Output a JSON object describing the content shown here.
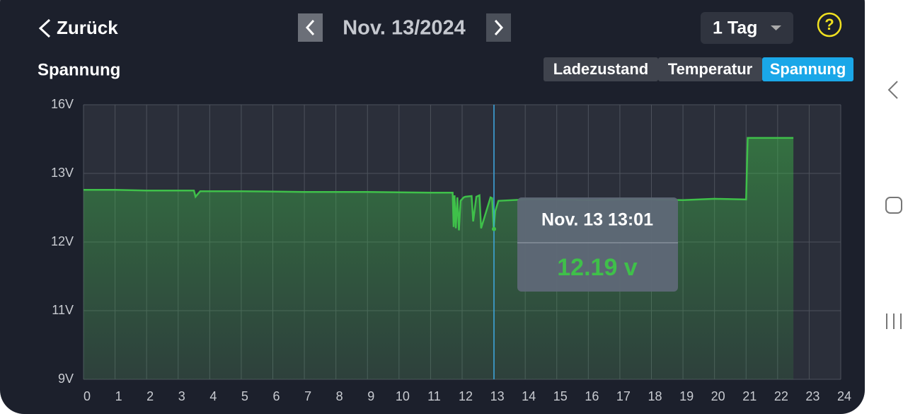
{
  "header": {
    "back": "Zurück",
    "date": "Nov. 13/2024",
    "range": "1 Tag",
    "help": "?"
  },
  "section_title": "Spannung",
  "tabs": {
    "items": [
      "Ladezustand",
      "Temperatur",
      "Spannung"
    ],
    "active": 2
  },
  "chart_data": {
    "type": "line",
    "color": "#3fc04a",
    "grid": true,
    "x": [
      0,
      1,
      2,
      3,
      3.5,
      3.55,
      3.7,
      5,
      7,
      9,
      11,
      11.7,
      11.73,
      11.76,
      11.8,
      11.85,
      11.9,
      11.95,
      12.05,
      12.1,
      12.3,
      12.35,
      12.45,
      12.55,
      12.6,
      12.9,
      12.95,
      13.0,
      13.05,
      13.15,
      14,
      15,
      16,
      17,
      18,
      19,
      20,
      21,
      21.05,
      22,
      22.5
    ],
    "values": [
      12.76,
      12.76,
      12.75,
      12.75,
      12.75,
      12.66,
      12.74,
      12.74,
      12.73,
      12.73,
      12.72,
      12.72,
      12.22,
      12.68,
      12.2,
      12.65,
      12.17,
      12.6,
      12.65,
      12.66,
      12.67,
      12.3,
      12.66,
      12.68,
      12.2,
      12.65,
      12.64,
      12.19,
      12.45,
      12.6,
      12.62,
      12.62,
      12.61,
      12.62,
      12.62,
      12.61,
      12.63,
      12.62,
      14.55,
      14.55,
      14.55
    ],
    "xlim": [
      0,
      24
    ],
    "xticks": [
      0,
      1,
      2,
      3,
      4,
      5,
      6,
      7,
      8,
      9,
      10,
      11,
      12,
      13,
      14,
      15,
      16,
      17,
      18,
      19,
      20,
      21,
      22,
      23,
      24
    ],
    "ylim": [
      9,
      16
    ],
    "yticks": [
      {
        "value": 9,
        "label": "9V"
      },
      {
        "value": 11,
        "label": "11V"
      },
      {
        "value": 12,
        "label": "12V"
      },
      {
        "value": 13,
        "label": "13V"
      },
      {
        "value": 16,
        "label": "16V"
      }
    ],
    "tooltip": {
      "x": 13.01,
      "label": "Nov. 13 13:01",
      "value": 12.19,
      "value_label": "12.19 v"
    }
  }
}
